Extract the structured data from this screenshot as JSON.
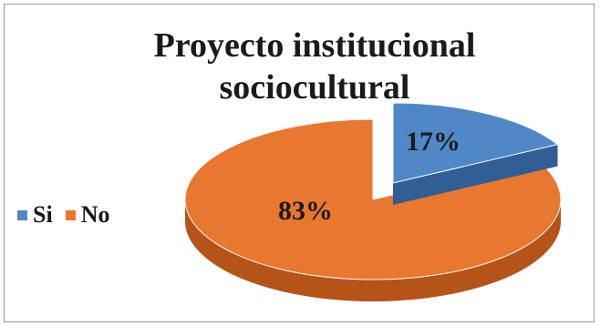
{
  "chart_data": {
    "type": "pie",
    "title_lines": [
      "Proyecto institucional",
      "sociocultural"
    ],
    "categories": [
      "Si",
      "No"
    ],
    "values": [
      17,
      83
    ],
    "data_labels": [
      "17%",
      "83%"
    ],
    "colors": [
      "#4f87c7",
      "#e8782f"
    ],
    "side_colors": [
      "#2f5f95",
      "#b55318"
    ],
    "legend_position": "left",
    "style": "3d-exploded"
  }
}
